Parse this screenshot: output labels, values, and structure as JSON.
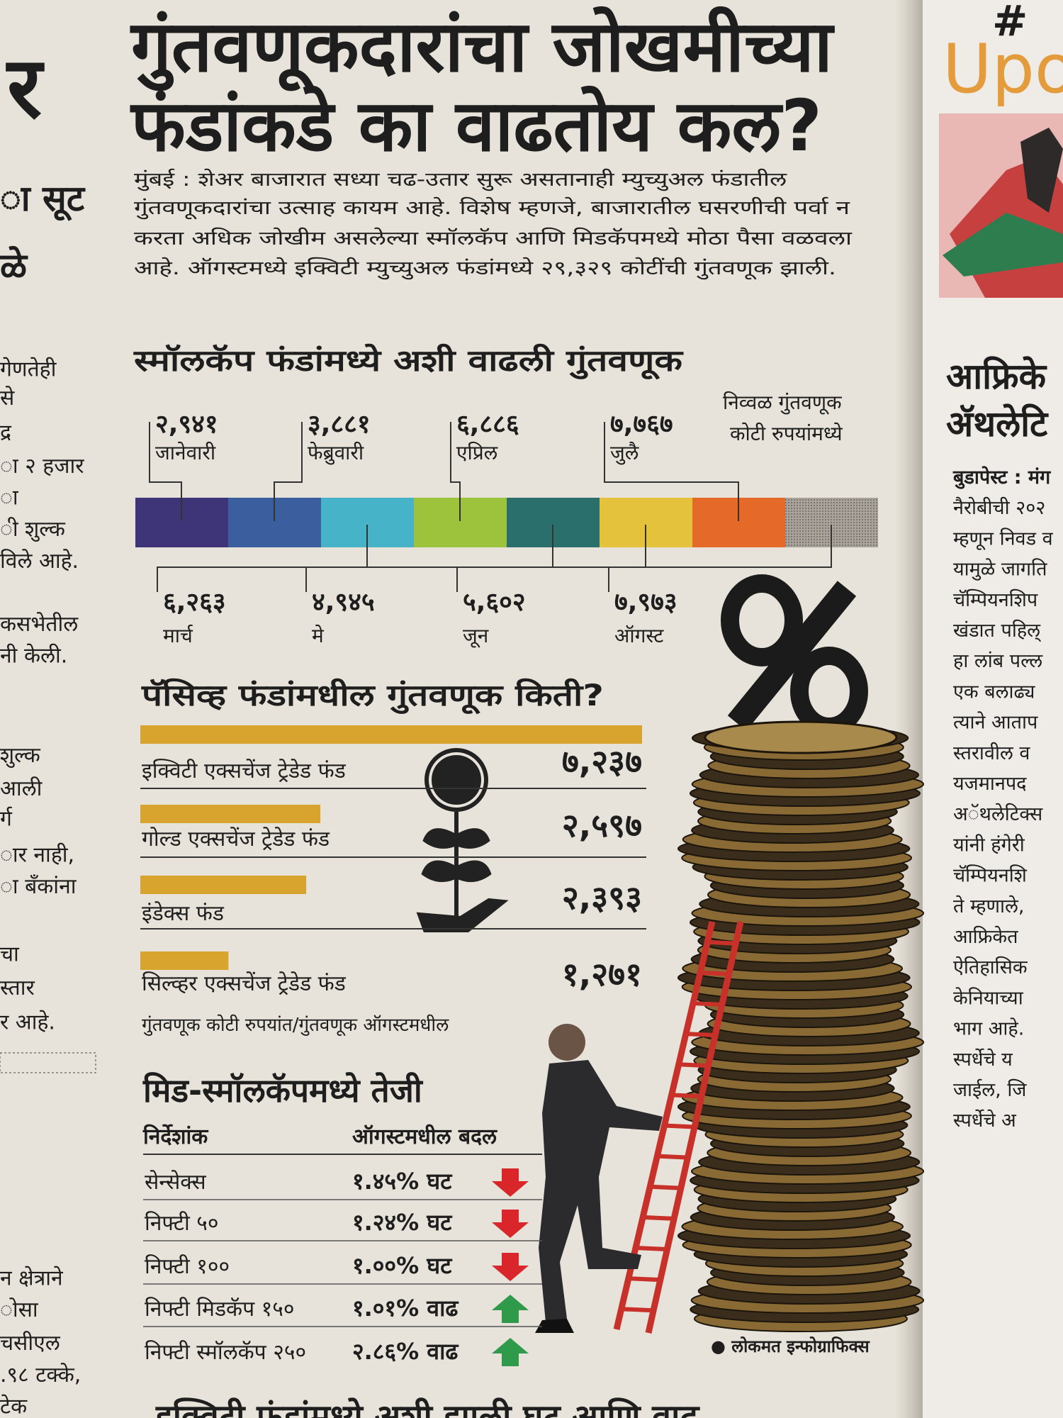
{
  "headline": [
    "गुंतवणूकदारांचा जोखमीच्या",
    "फंडांकडे का वाढतोय कल?"
  ],
  "intro": [
    "मुंबई : शेअर बाजारात सध्या चढ-उतार सुरू असतानाही म्युच्युअल फंडातील",
    "गुंतवणूकदारांचा उत्साह कायम आहे. विशेष म्हणजे, बाजारातील घसरणीची पर्वा न",
    "करता अधिक जोखीम असलेल्या स्मॉलकॅप आणि मिडकॅपमध्ये मोठा पैसा वळवला",
    "आहे. ऑगस्टमध्ये इक्विटी म्युच्युअल फंडांमध्ये २९,३२९ कोटींची गुंतवणूक झाली."
  ],
  "smallcap": {
    "title": "स्मॉलकॅप फंडांमध्ये अशी वाढली गुंतवणूक",
    "legend": [
      "निव्वळ गुंतवणूक",
      "कोटी रुपयांमध्ये"
    ],
    "months": [
      {
        "label": "जानेवारी",
        "value": "२,९४१"
      },
      {
        "label": "फेब्रुवारी",
        "value": "३,८८१"
      },
      {
        "label": "मार्च",
        "value": "६,२६३"
      },
      {
        "label": "एप्रिल",
        "value": "६,८८६"
      },
      {
        "label": "मे",
        "value": "४,९४५"
      },
      {
        "label": "जून",
        "value": "५,६०२"
      },
      {
        "label": "जुलै",
        "value": "७,७६७"
      },
      {
        "label": "ऑगस्ट",
        "value": "७,९७३"
      }
    ]
  },
  "passive": {
    "title": "पॅसिव्ह फंडांमधील गुंतवणूक किती?",
    "rows": [
      {
        "label": "इक्विटी एक्सचेंज ट्रेडेड फंड",
        "value": "७,२३७"
      },
      {
        "label": "गोल्ड एक्सचेंज ट्रेडेड फंड",
        "value": "२,५९७"
      },
      {
        "label": "इंडेक्स फंड",
        "value": "२,३९३"
      },
      {
        "label": "सिल्व्हर एक्सचेंज ट्रेडेड फंड",
        "value": "१,२७१"
      }
    ],
    "note": "गुंतवणूक कोटी रुपयांत/गुंतवणूक ऑगस्टमधील"
  },
  "midsmall": {
    "title": "मिड-स्मॉलकॅपमध्ये तेजी",
    "headers": [
      "निर्देशांक",
      "ऑगस्टमधील बदल"
    ],
    "rows": [
      [
        "सेन्सेक्स",
        "१.४५% घट"
      ],
      [
        "निफ्टी ५०",
        "१.२४% घट"
      ],
      [
        "निफ्टी १००",
        "१.००% घट"
      ],
      [
        "निफ्टी मिडकॅप १५०",
        "१.०१% वाढ"
      ],
      [
        "निफ्टी स्मॉलकॅप २५०",
        "२.८६% वाढ"
      ]
    ]
  },
  "credit": "● लोकमत इन्फोग्राफिक्स",
  "next_headline": "इक्विटी फंडांमध्ये अशी झाली घट आणि वाढ",
  "left_column": {
    "big": "र",
    "lines": [
      "ा सूट",
      "ळे",
      "गेणतेही",
      "से",
      "द्र",
      "ा २ हजार",
      "ा",
      "ी शुल्क",
      "विले आहे.",
      "कसभेतील",
      "नी केली.",
      "शुल्क",
      "आली",
      "र्ग",
      "ार नाही,",
      "ा बँकांना",
      "चा",
      "स्तार",
      "र आहे.",
      "न क्षेत्राने",
      "ोसा",
      "चसीएल",
      ".९८ टक्के,",
      "टेक"
    ]
  },
  "right_column": {
    "hash": "#",
    "kicker": "Upo",
    "headline": [
      "आफ्रिके",
      "ॲथलेटि"
    ],
    "lines": [
      "बुडापेस्ट : मंग",
      "नैरोबीची २०२",
      "म्हणून निवड व",
      "यामुळे जागति",
      "चॅम्पियनशिप",
      "खंडात पहिल्",
      "हा लांब पल्ल",
      "एक बलाढ्य",
      "त्याने आताप",
      "स्तरावील व",
      "यजमानपद",
      "अॅथलेटिक्स",
      "यांनी हंगेरी",
      "चॅम्पियनशि",
      "ते म्हणाले,",
      "आफ्रिकेत",
      "ऐतिहासिक",
      "केनियाच्या",
      "भाग आहे.",
      "स्पर्धेचे य",
      "जाईल, जि",
      "स्पर्धेचे अ"
    ]
  }
}
